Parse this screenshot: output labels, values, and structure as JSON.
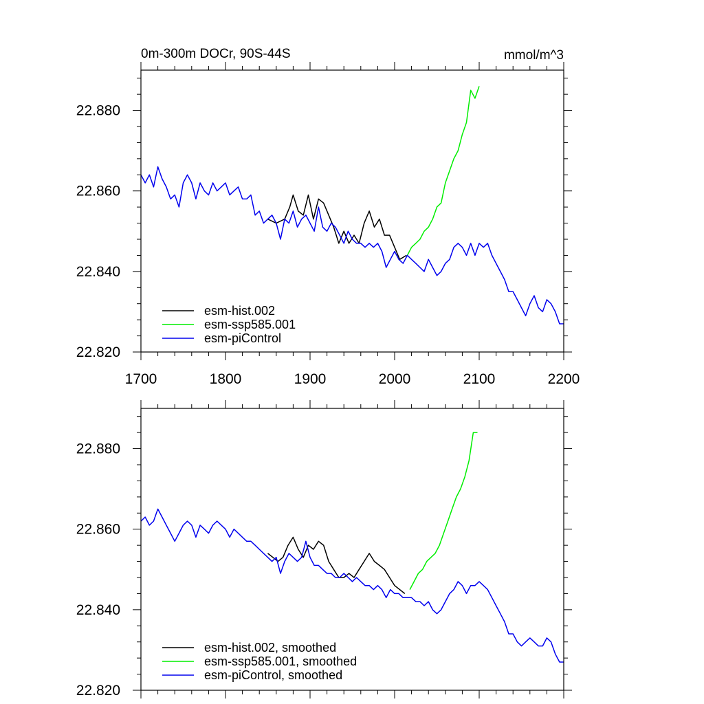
{
  "chart_data": [
    {
      "type": "line",
      "title_left": "0m-300m DOCr, 90S-44S",
      "title_right": "mmol/m^3",
      "xlim": [
        1700,
        2200
      ],
      "ylim": [
        22.82,
        22.89
      ],
      "x_ticks": [
        1700,
        1800,
        1900,
        2000,
        2100,
        2200
      ],
      "x_tick_labels": [
        "1700",
        "1800",
        "1900",
        "2000",
        "2100",
        "2200"
      ],
      "y_ticks": [
        22.82,
        22.84,
        22.86,
        22.88
      ],
      "y_tick_labels": [
        "22.820",
        "22.840",
        "22.860",
        "22.880"
      ],
      "legend": [
        "esm-hist.002",
        "esm-ssp585.001",
        "esm-piControl"
      ],
      "series": [
        {
          "name": "esm-hist.002",
          "color": "#000000",
          "x": [
            1850,
            1860,
            1870,
            1876,
            1880,
            1886,
            1892,
            1898,
            1904,
            1910,
            1916,
            1922,
            1928,
            1934,
            1940,
            1946,
            1952,
            1958,
            1964,
            1970,
            1976,
            1982,
            1988,
            1994,
            2000,
            2006,
            2014
          ],
          "values": [
            22.853,
            22.852,
            22.853,
            22.856,
            22.859,
            22.855,
            22.854,
            22.859,
            22.853,
            22.858,
            22.857,
            22.854,
            22.851,
            22.847,
            22.85,
            22.847,
            22.849,
            22.847,
            22.852,
            22.855,
            22.851,
            22.853,
            22.849,
            22.849,
            22.846,
            22.843,
            22.844
          ]
        },
        {
          "name": "esm-ssp585.001",
          "color": "#00ee00",
          "x": [
            2015,
            2020,
            2025,
            2030,
            2035,
            2040,
            2045,
            2050,
            2055,
            2060,
            2065,
            2070,
            2075,
            2080,
            2085,
            2090,
            2095,
            2100
          ],
          "values": [
            22.844,
            22.846,
            22.847,
            22.848,
            22.85,
            22.851,
            22.853,
            22.856,
            22.857,
            22.862,
            22.865,
            22.868,
            22.87,
            22.874,
            22.877,
            22.885,
            22.883,
            22.886
          ]
        },
        {
          "name": "esm-piControl",
          "color": "#0000ee",
          "x": [
            1700,
            1705,
            1710,
            1715,
            1720,
            1725,
            1730,
            1735,
            1740,
            1745,
            1750,
            1755,
            1760,
            1765,
            1770,
            1775,
            1780,
            1785,
            1790,
            1795,
            1800,
            1805,
            1810,
            1815,
            1820,
            1825,
            1830,
            1835,
            1840,
            1845,
            1850,
            1855,
            1860,
            1865,
            1870,
            1875,
            1880,
            1885,
            1890,
            1895,
            1900,
            1905,
            1910,
            1915,
            1920,
            1925,
            1930,
            1935,
            1940,
            1945,
            1950,
            1955,
            1960,
            1965,
            1970,
            1975,
            1980,
            1985,
            1990,
            1995,
            2000,
            2005,
            2010,
            2015,
            2020,
            2025,
            2030,
            2035,
            2040,
            2045,
            2050,
            2055,
            2060,
            2065,
            2070,
            2075,
            2080,
            2085,
            2090,
            2095,
            2100,
            2105,
            2110,
            2115,
            2120,
            2125,
            2130,
            2135,
            2140,
            2145,
            2150,
            2155,
            2160,
            2165,
            2170,
            2175,
            2180,
            2185,
            2190,
            2195,
            2200
          ],
          "values": [
            22.864,
            22.862,
            22.864,
            22.861,
            22.866,
            22.863,
            22.861,
            22.858,
            22.859,
            22.856,
            22.862,
            22.864,
            22.862,
            22.858,
            22.862,
            22.86,
            22.859,
            22.862,
            22.86,
            22.861,
            22.862,
            22.859,
            22.86,
            22.861,
            22.858,
            22.858,
            22.859,
            22.854,
            22.855,
            22.852,
            22.853,
            22.854,
            22.852,
            22.848,
            22.853,
            22.852,
            22.855,
            22.851,
            22.853,
            22.854,
            22.852,
            22.85,
            22.856,
            22.851,
            22.85,
            22.852,
            22.851,
            22.849,
            22.847,
            22.85,
            22.848,
            22.847,
            22.847,
            22.846,
            22.847,
            22.846,
            22.847,
            22.845,
            22.841,
            22.843,
            22.845,
            22.843,
            22.842,
            22.844,
            22.843,
            22.842,
            22.841,
            22.84,
            22.843,
            22.841,
            22.839,
            22.84,
            22.842,
            22.843,
            22.846,
            22.847,
            22.846,
            22.844,
            22.847,
            22.844,
            22.847,
            22.846,
            22.847,
            22.844,
            22.842,
            22.84,
            22.838,
            22.835,
            22.835,
            22.833,
            22.831,
            22.829,
            22.832,
            22.834,
            22.831,
            22.83,
            22.833,
            22.832,
            22.83,
            22.827,
            22.827
          ]
        }
      ]
    },
    {
      "type": "line",
      "xlim": [
        1700,
        2200
      ],
      "ylim": [
        22.82,
        22.89
      ],
      "x_ticks": [
        1700,
        1800,
        1900,
        2000,
        2100,
        2200
      ],
      "y_ticks": [
        22.82,
        22.84,
        22.86,
        22.88
      ],
      "y_tick_labels": [
        "22.820",
        "22.840",
        "22.860",
        "22.880"
      ],
      "legend": [
        "esm-hist.002, smoothed",
        "esm-ssp585.001, smoothed",
        "esm-piControl, smoothed"
      ],
      "series": [
        {
          "name": "esm-hist.002, smoothed",
          "color": "#000000",
          "x": [
            1850,
            1856,
            1862,
            1868,
            1874,
            1880,
            1886,
            1892,
            1898,
            1904,
            1910,
            1916,
            1922,
            1928,
            1934,
            1940,
            1946,
            1952,
            1958,
            1964,
            1970,
            1976,
            1982,
            1988,
            1994,
            2000,
            2006,
            2012
          ],
          "values": [
            22.854,
            22.853,
            22.852,
            22.853,
            22.856,
            22.858,
            22.855,
            22.853,
            22.856,
            22.855,
            22.857,
            22.856,
            22.852,
            22.85,
            22.848,
            22.848,
            22.849,
            22.848,
            22.85,
            22.852,
            22.854,
            22.852,
            22.851,
            22.85,
            22.848,
            22.846,
            22.845,
            22.844
          ]
        },
        {
          "name": "esm-ssp585.001, smoothed",
          "color": "#00ee00",
          "x": [
            2018,
            2023,
            2028,
            2033,
            2038,
            2043,
            2048,
            2053,
            2058,
            2063,
            2068,
            2073,
            2078,
            2083,
            2088,
            2093,
            2098
          ],
          "values": [
            22.845,
            22.847,
            22.849,
            22.85,
            22.852,
            22.853,
            22.854,
            22.856,
            22.859,
            22.862,
            22.865,
            22.868,
            22.87,
            22.873,
            22.877,
            22.884,
            22.884
          ]
        },
        {
          "name": "esm-piControl, smoothed",
          "color": "#0000ee",
          "x": [
            1700,
            1705,
            1710,
            1715,
            1720,
            1725,
            1730,
            1735,
            1740,
            1745,
            1750,
            1755,
            1760,
            1765,
            1770,
            1775,
            1780,
            1785,
            1790,
            1795,
            1800,
            1805,
            1810,
            1815,
            1820,
            1825,
            1830,
            1835,
            1840,
            1845,
            1850,
            1855,
            1860,
            1865,
            1870,
            1875,
            1880,
            1885,
            1890,
            1895,
            1900,
            1905,
            1910,
            1915,
            1920,
            1925,
            1930,
            1935,
            1940,
            1945,
            1950,
            1955,
            1960,
            1965,
            1970,
            1975,
            1980,
            1985,
            1990,
            1995,
            2000,
            2005,
            2010,
            2015,
            2020,
            2025,
            2030,
            2035,
            2040,
            2045,
            2050,
            2055,
            2060,
            2065,
            2070,
            2075,
            2080,
            2085,
            2090,
            2095,
            2100,
            2105,
            2110,
            2115,
            2120,
            2125,
            2130,
            2135,
            2140,
            2145,
            2150,
            2155,
            2160,
            2165,
            2170,
            2175,
            2180,
            2185,
            2190,
            2195,
            2200
          ],
          "values": [
            22.862,
            22.863,
            22.861,
            22.862,
            22.865,
            22.863,
            22.861,
            22.859,
            22.857,
            22.859,
            22.861,
            22.862,
            22.861,
            22.858,
            22.861,
            22.86,
            22.859,
            22.861,
            22.862,
            22.861,
            22.86,
            22.858,
            22.86,
            22.859,
            22.858,
            22.857,
            22.857,
            22.856,
            22.855,
            22.854,
            22.853,
            22.852,
            22.853,
            22.849,
            22.852,
            22.854,
            22.853,
            22.852,
            22.853,
            22.857,
            22.853,
            22.851,
            22.851,
            22.85,
            22.849,
            22.849,
            22.848,
            22.848,
            22.849,
            22.848,
            22.847,
            22.848,
            22.847,
            22.846,
            22.846,
            22.845,
            22.846,
            22.845,
            22.843,
            22.845,
            22.844,
            22.844,
            22.843,
            22.843,
            22.843,
            22.842,
            22.842,
            22.841,
            22.842,
            22.84,
            22.839,
            22.84,
            22.842,
            22.844,
            22.845,
            22.847,
            22.846,
            22.844,
            22.846,
            22.846,
            22.847,
            22.846,
            22.845,
            22.843,
            22.841,
            22.839,
            22.837,
            22.834,
            22.834,
            22.832,
            22.831,
            22.832,
            22.833,
            22.832,
            22.831,
            22.831,
            22.833,
            22.832,
            22.829,
            22.827,
            22.827
          ]
        }
      ]
    }
  ]
}
